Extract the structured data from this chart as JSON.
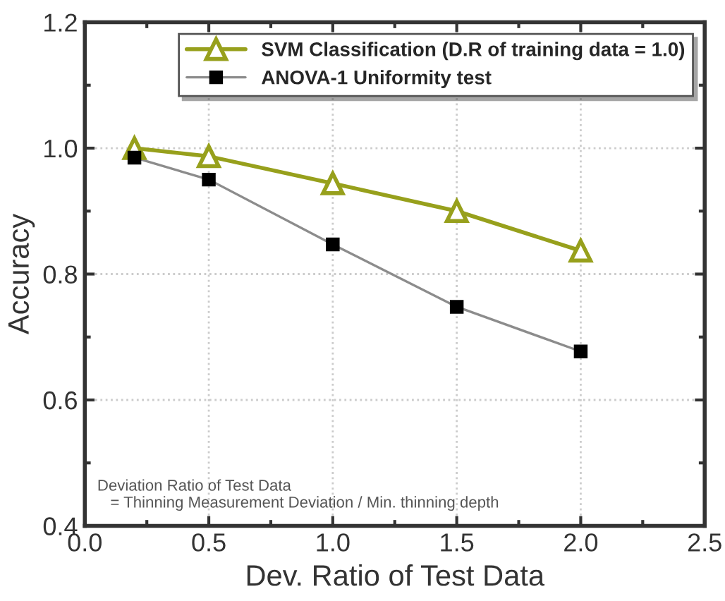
{
  "chart_data": {
    "type": "line",
    "xlabel": "Dev. Ratio of Test Data",
    "ylabel": "Accuracy",
    "x": [
      0.2,
      0.5,
      1.0,
      1.5,
      2.0
    ],
    "series": [
      {
        "name": "SVM Classification (D.R of training data = 1.0)",
        "color": "#97a01c",
        "marker": "triangle",
        "values": [
          1.0,
          0.987,
          0.944,
          0.9,
          0.837
        ]
      },
      {
        "name": "ANOVA-1 Uniformity test",
        "color": "#000000",
        "marker": "square",
        "values": [
          0.985,
          0.95,
          0.847,
          0.748,
          0.677
        ]
      }
    ],
    "xlim": [
      0.0,
      2.5
    ],
    "xticks": [
      {
        "value": 0,
        "label": "0.0"
      },
      0.5,
      {
        "value": 1,
        "label": "1.0"
      },
      1.5,
      {
        "value": 2,
        "label": "2.0"
      },
      2.5
    ],
    "ylim": [
      0.4,
      1.2
    ],
    "yticks": [
      0.4,
      0.6,
      0.8,
      {
        "value": 1,
        "label": "1.0"
      },
      1.2
    ],
    "grid": true,
    "legend": "top right",
    "line_style": "solid",
    "annotations": [
      "Deviation Ratio of Test Data\n   = Thinning Measurement Deviation / Min. thinning depth"
    ]
  }
}
